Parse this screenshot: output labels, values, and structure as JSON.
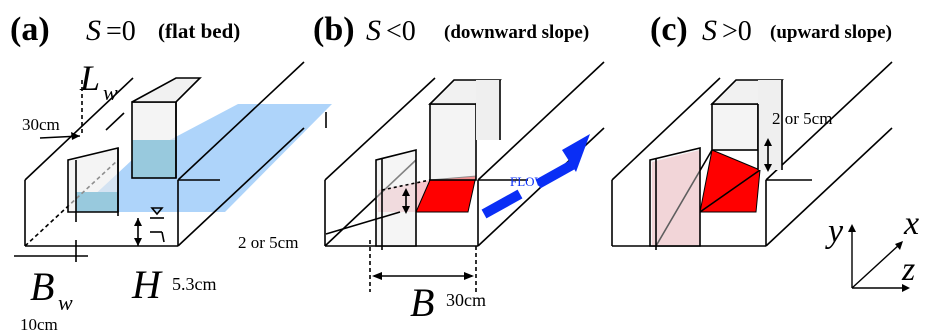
{
  "panels": [
    {
      "letter": "(a)",
      "symbol": "S",
      "relation": "=0",
      "caption": "(flat bed)"
    },
    {
      "letter": "(b)",
      "symbol": "S",
      "relation": "<0",
      "caption": "(downward slope)"
    },
    {
      "letter": "(c)",
      "symbol": "S",
      "relation": ">0",
      "caption": "(upward slope)"
    }
  ],
  "labels": {
    "lw_symbol": "L",
    "lw_sub": "w",
    "lw_value": "30cm",
    "bw_symbol": "B",
    "bw_sub": "w",
    "bw_value": "10cm",
    "h_symbol": "H",
    "h_value": "5.3cm",
    "b_symbol": "B",
    "b_value": "30cm",
    "step_b": "2 or 5cm",
    "step_c": "2 or 5cm",
    "flow": "FLOW"
  },
  "axes": {
    "x": "x",
    "y": "y",
    "z": "z"
  },
  "colors": {
    "water_light": "#aed4fa",
    "water_dark": "#1b94c6",
    "red": "#ff0000",
    "pink": "#f7c6cc",
    "wall_gray": "#e6e6e6",
    "flow_arrow": "#0a2ef5"
  }
}
